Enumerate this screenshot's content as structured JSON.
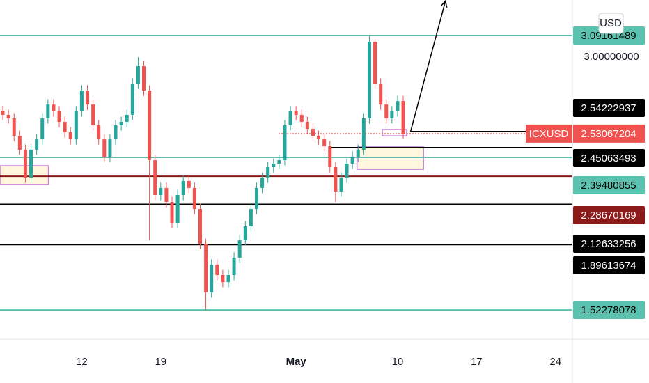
{
  "chart_data": {
    "type": "candlestick",
    "symbol": "ICXUSD",
    "currency": "USD",
    "last": 2.53067204,
    "up_color": "#26a69a",
    "down_color": "#ef5350",
    "xlim": [
      -0.5,
      101
    ],
    "ylim": [
      1.3559,
      3.2946
    ],
    "xticks": [
      {
        "value": 14,
        "label": "12"
      },
      {
        "value": 28,
        "label": "19"
      },
      {
        "value": 52,
        "label": "May"
      },
      {
        "value": 70,
        "label": "10"
      },
      {
        "value": 84,
        "label": "17"
      },
      {
        "value": 98,
        "label": "24"
      }
    ],
    "yticks": [
      {
        "value": 3,
        "label": "3.00000000"
      }
    ],
    "open": [
      2.66,
      2.638,
      2.618,
      2.518,
      2.439,
      2.279,
      2.439,
      2.498,
      2.618,
      2.697,
      2.658,
      2.598,
      2.538,
      2.498,
      2.658,
      2.777,
      2.697,
      2.578,
      2.498,
      2.399,
      2.498,
      2.578,
      2.598,
      2.638,
      2.817,
      2.916,
      2.777,
      2.379,
      2.18,
      2.22,
      2.14,
      2.021,
      2.18,
      2.26,
      2.22,
      2.1,
      1.901,
      1.623,
      1.782,
      1.722,
      1.682,
      1.722,
      1.822,
      1.921,
      2.001,
      2.1,
      2.22,
      2.279,
      2.339,
      2.359,
      2.379,
      2.578,
      2.658,
      2.638,
      2.598,
      2.558,
      2.518,
      2.498,
      2.459,
      2.339,
      2.2,
      2.279,
      2.359,
      2.399,
      2.439,
      2.618,
      3.056,
      2.817,
      2.697,
      2.618,
      2.658,
      2.717
    ],
    "high": [
      2.69,
      2.668,
      2.648,
      2.548,
      2.469,
      2.469,
      2.528,
      2.648,
      2.727,
      2.727,
      2.688,
      2.628,
      2.568,
      2.688,
      2.807,
      2.807,
      2.727,
      2.608,
      2.528,
      2.528,
      2.608,
      2.628,
      2.668,
      2.847,
      2.968,
      2.946,
      2.807,
      2.409,
      2.25,
      2.25,
      2.17,
      2.21,
      2.29,
      2.29,
      2.25,
      2.13,
      1.931,
      1.812,
      1.812,
      1.752,
      1.752,
      1.852,
      1.951,
      2.031,
      2.13,
      2.25,
      2.309,
      2.369,
      2.389,
      2.409,
      2.608,
      2.688,
      2.688,
      2.668,
      2.628,
      2.588,
      2.548,
      2.528,
      2.489,
      2.369,
      2.309,
      2.389,
      2.429,
      2.469,
      2.648,
      3.092,
      3.07,
      2.847,
      2.727,
      2.688,
      2.747,
      2.747
    ],
    "low": [
      2.608,
      2.588,
      2.488,
      2.409,
      2.249,
      2.249,
      2.409,
      2.468,
      2.588,
      2.628,
      2.568,
      2.508,
      2.468,
      2.468,
      2.628,
      2.667,
      2.548,
      2.468,
      2.369,
      2.369,
      2.468,
      2.548,
      2.568,
      2.608,
      2.787,
      2.747,
      1.921,
      2.15,
      2.15,
      2.11,
      1.991,
      1.991,
      2.15,
      2.19,
      2.07,
      1.871,
      1.523,
      1.593,
      1.692,
      1.652,
      1.652,
      1.692,
      1.792,
      1.891,
      1.971,
      2.07,
      2.19,
      2.249,
      2.309,
      2.329,
      2.349,
      2.548,
      2.608,
      2.568,
      2.528,
      2.488,
      2.468,
      2.429,
      2.309,
      2.14,
      2.17,
      2.249,
      2.329,
      2.369,
      2.409,
      2.588,
      2.787,
      2.667,
      2.588,
      2.588,
      2.628,
      2.501
    ],
    "close": [
      2.638,
      2.618,
      2.518,
      2.439,
      2.279,
      2.439,
      2.498,
      2.618,
      2.697,
      2.658,
      2.598,
      2.538,
      2.498,
      2.658,
      2.777,
      2.697,
      2.578,
      2.498,
      2.399,
      2.498,
      2.578,
      2.598,
      2.638,
      2.817,
      2.916,
      2.777,
      2.379,
      2.18,
      2.22,
      2.14,
      2.021,
      2.18,
      2.26,
      2.22,
      2.1,
      1.901,
      1.623,
      1.782,
      1.722,
      1.682,
      1.722,
      1.822,
      1.921,
      2.001,
      2.1,
      2.22,
      2.279,
      2.339,
      2.359,
      2.379,
      2.578,
      2.658,
      2.638,
      2.598,
      2.558,
      2.518,
      2.498,
      2.459,
      2.339,
      2.2,
      2.279,
      2.359,
      2.399,
      2.439,
      2.618,
      3.056,
      2.817,
      2.697,
      2.618,
      2.658,
      2.717,
      2.531
    ],
    "levels": [
      {
        "price": 3.09161489,
        "color": "#5cc2b0",
        "text_color": "#000000",
        "start": -0.5
      },
      {
        "price": 2.54222937,
        "color": "#000000",
        "text_color": "#ffffff",
        "start": 72.3
      },
      {
        "price": 2.45063493,
        "color": "#000000",
        "text_color": "#ffffff",
        "start": 58.1
      },
      {
        "price": 2.39480855,
        "color": "#5cc2b0",
        "text_color": "#000000",
        "start": -0.5
      },
      {
        "price": 2.28670169,
        "color": "#8b1a1a",
        "text_color": "#ffffff",
        "start": -0.5
      },
      {
        "price": 2.12633256,
        "color": "#000000",
        "text_color": "#ffffff",
        "start": -0.5
      },
      {
        "price": 1.89613674,
        "color": "#000000",
        "text_color": "#ffffff",
        "start": -0.5
      },
      {
        "price": 1.52278078,
        "color": "#5cc2b0",
        "text_color": "#000000",
        "start": -0.5
      }
    ],
    "boxes": [
      {
        "x": [
          -0.5,
          8.1
        ],
        "y": [
          2.347,
          2.24
        ]
      },
      {
        "x": [
          62.8,
          74.6
        ],
        "y": [
          2.455,
          2.327
        ]
      },
      {
        "x": [
          67.3,
          71.6
        ],
        "y": [
          2.554,
          2.518
        ]
      }
    ],
    "arrow": {
      "x": [
        72.3,
        78.5
      ],
      "y": [
        2.5422,
        3.29
      ]
    }
  }
}
